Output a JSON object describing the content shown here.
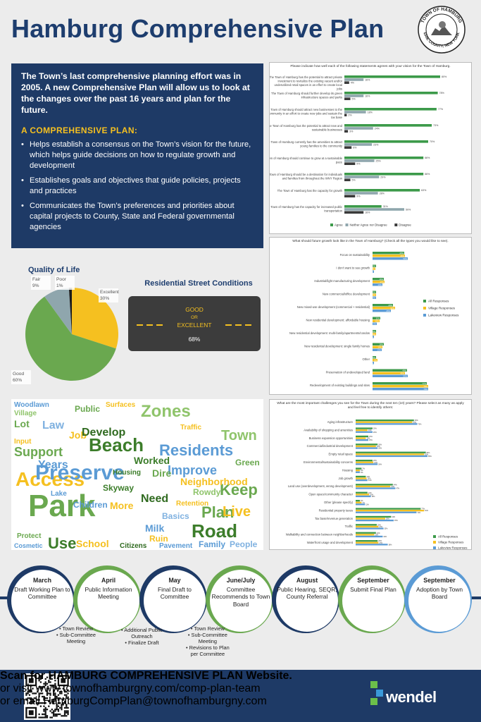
{
  "header": {
    "title": "Hamburg Comprehensive Plan",
    "seal_top": "TOWN OF HAMBURG",
    "seal_bottom": "ERIE COUNTY, NEW YORK"
  },
  "intro": {
    "lead": "The Town’s last comprehensive planning effort was in 2005. A new Comprehensive Plan will allow us to look at the changes over the past 16 years and plan for the future.",
    "heading": "A COMPREHENSIVE PLAN:",
    "bullets": [
      "Helps establish a consensus on the Town’s vision for the future, which helps guide decisions on how to regulate growth and development",
      "Establishes goals and objectives that guide policies, projects and practices",
      "Communicates the Town’s preferences and priorities about capital projects to County, State and Federal governmental agencies"
    ]
  },
  "quality_of_life": {
    "title": "Quality of Life",
    "labels": [
      "Excellent\n30%",
      "Good\n60%",
      "Fair\n9%",
      "Poor\n1%"
    ]
  },
  "street_conditions": {
    "title": "Residential Street Conditions",
    "good": "GOOD",
    "or": "OR",
    "excellent": "EXCELLENT",
    "value": "68%"
  },
  "timeline": {
    "steps": [
      {
        "month": "March",
        "text": "Draft Working Plan to Committee"
      },
      {
        "month": "April",
        "text": "Public Information Meeting"
      },
      {
        "month": "May",
        "text": "Final Draft to Committee"
      },
      {
        "month": "June/July",
        "text": "Committee Recommends to Town Board"
      },
      {
        "month": "August",
        "text": "Public Hearing, SEQR, County Referral"
      },
      {
        "month": "September",
        "text": "Submit Final Plan"
      },
      {
        "month": "September",
        "text": "Adoption by Town Board"
      }
    ],
    "notes_a": [
      "• Town Review",
      "• Sub-Committee",
      "Meeting"
    ],
    "notes_b": [
      "• Additional Public",
      "Outreach",
      "• Finalize Draft"
    ],
    "notes_c": [
      "• Town Review",
      "• Sub-Committee",
      "Meeting",
      "• Revisions to Plan",
      "per Committee"
    ]
  },
  "footer": {
    "line1": "Scan for HAMBURG COMPREHENSIVE PLAN Website.",
    "line2": "or visit www.townofhamburgny.com/comp-plan-team",
    "line3": "or email HamburgCompPlan@townofhamburgny.com",
    "logo": "wendel"
  },
  "colors": {
    "navy": "#1e3a66",
    "green": "#3c9a4a",
    "gold": "#f5c020",
    "blue": "#5b9bd5",
    "gray": "#8fa6ad"
  },
  "wordcloud": [
    "Zones",
    "Beach",
    "Residents",
    "Access",
    "Preserve",
    "Park",
    "Plan",
    "Live",
    "Road",
    "Keep",
    "Improve",
    "Neighborhood",
    "Town",
    "Support",
    "Law",
    "Job",
    "Develop",
    "Years",
    "Use",
    "School",
    "Family",
    "People",
    "Need",
    "More",
    "Children",
    "Worked",
    "Public",
    "Surfaces",
    "Woodlawn",
    "Village",
    "Lot",
    "Input",
    "Basics",
    "Dire",
    "Skyway",
    "Milk",
    "Ruin",
    "Citizens",
    "Pavement",
    "Green",
    "Traffic",
    "Rowdy",
    "Lake",
    "Housing",
    "Retention",
    "Cosmetic",
    "Protect"
  ],
  "chart_data": [
    {
      "type": "bar",
      "title": "Please indicate how well each of the following statements agrees with your vision for the Town of Hamburg.",
      "categories": [
        "The Town of Hamburg has the potential to attract private investment to revitalize the existing vacant and/or underutilized retail spaces in an effort to create local jobs",
        "The Town of Hamburg should further develop its green infrastructure spaces and parks",
        "The Town of Hamburg should attract new businesses to the community in an effort to create new jobs and sustain the tax base",
        "The Town of Hamburg has the potential to attract new and sustainable businesses",
        "The Town of Hamburg currently has the amenities to attract young families to the community",
        "The Town of Hamburg should continue to grow at a sustainable pace",
        "The Town of Hamburg should be a destination for individuals and families from throughout the WNY Region",
        "The Town of Hamburg has the capacity for growth",
        "The Town of Hamburg has the capacity for increased public transportation"
      ],
      "series": [
        {
          "name": "Agree",
          "values": [
            80,
            78,
            77,
            73,
            70,
            66,
            66,
            63,
            31
          ]
        },
        {
          "name": "Neither Agree nor Disagree",
          "values": [
            16,
            16,
            18,
            24,
            23,
            25,
            29,
            28,
            50
          ]
        },
        {
          "name": "Disagree",
          "values": [
            4,
            5,
            2,
            3,
            6,
            9,
            5,
            9,
            16
          ]
        }
      ]
    },
    {
      "type": "bar",
      "title": "What should future growth look like in the Town of Hamburg? (Check all the types you would like to see).",
      "categories": [
        "Focus on sustainability",
        "I don't want to see growth",
        "Industrial/light manufacturing development",
        "New commercial/office development",
        "New mixed-use development (commercial + residential)",
        "New residential development: affordable housing",
        "New residential development: multi-family/apartments/condos",
        "New residential development: single family homes",
        "Other",
        "Preservation of undeveloped land",
        "Redevelopment of existing buildings and sites"
      ],
      "series": [
        {
          "name": "All Responses",
          "values": [
            45,
            5,
            16,
            5,
            29,
            11,
            5,
            16,
            5,
            49,
            77
          ]
        },
        {
          "name": "Village Responses",
          "values": [
            46,
            4,
            17,
            5,
            32,
            10,
            5,
            14,
            7,
            46,
            79
          ]
        },
        {
          "name": "Lakeview Responses",
          "values": [
            50,
            2,
            14,
            5,
            26,
            6,
            2,
            13,
            2,
            50,
            79
          ]
        }
      ]
    },
    {
      "type": "bar",
      "title": "What are the most important challenges you see for the Town during the next ten (10) years? Please select as many as apply and feel free to identify others:",
      "categories": [
        "Aging infrastructure",
        "Availability of shopping and amenities",
        "Business expansion opportunities",
        "Commercial/industrial development",
        "Empty retail space",
        "Environmental/sustainability concerns",
        "Housing",
        "Job growth",
        "Land use (overdevelopment, wrong development)",
        "Open space/community character",
        "Other (please specify)",
        "Residential property taxes",
        "Tax base/revenue generation",
        "Traffic",
        "Walkability and connection between neighborhoods",
        "Waterfront usage and development"
      ],
      "series": [
        {
          "name": "All Responses",
          "values": [
            69,
            20,
            15,
            26,
            83,
            20,
            7,
            12,
            44,
            14,
            5,
            77,
            42,
            25,
            24,
            26
          ]
        },
        {
          "name": "Village Responses",
          "values": [
            67,
            14,
            12,
            24,
            81,
            21,
            5,
            13,
            41,
            16,
            7,
            81,
            35,
            27,
            22,
            27
          ]
        },
        {
          "name": "Lakeview Responses",
          "values": [
            73,
            20,
            15,
            26,
            85,
            26,
            5,
            14,
            47,
            18,
            11,
            72,
            45,
            33,
            32,
            38
          ]
        }
      ]
    },
    {
      "type": "pie",
      "title": "Quality of Life",
      "categories": [
        "Excellent",
        "Good",
        "Fair",
        "Poor"
      ],
      "values": [
        30,
        60,
        9,
        1
      ]
    }
  ]
}
